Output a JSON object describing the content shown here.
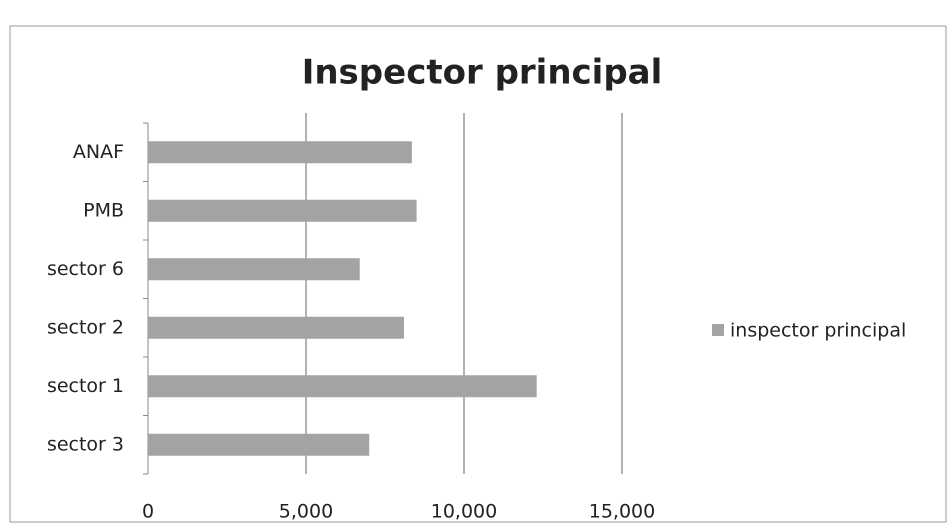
{
  "chart_data": {
    "type": "bar",
    "orientation": "horizontal",
    "title": "Inspector principal",
    "categories": [
      "ANAF",
      "PMB",
      "sector 6",
      "sector 2",
      "sector 1",
      "sector 3"
    ],
    "series": [
      {
        "name": "inspector principal",
        "color": "#a3a3a3",
        "values": [
          8350,
          8500,
          6700,
          8100,
          12300,
          7000
        ]
      }
    ],
    "xlim": [
      0,
      15000
    ],
    "xticks": [
      0,
      {
        "value": 5000,
        "label": "5,000"
      },
      {
        "value": 10000,
        "label": "10,000"
      },
      {
        "value": 15000,
        "label": "15,000"
      }
    ],
    "grid": true,
    "legend": "right"
  }
}
